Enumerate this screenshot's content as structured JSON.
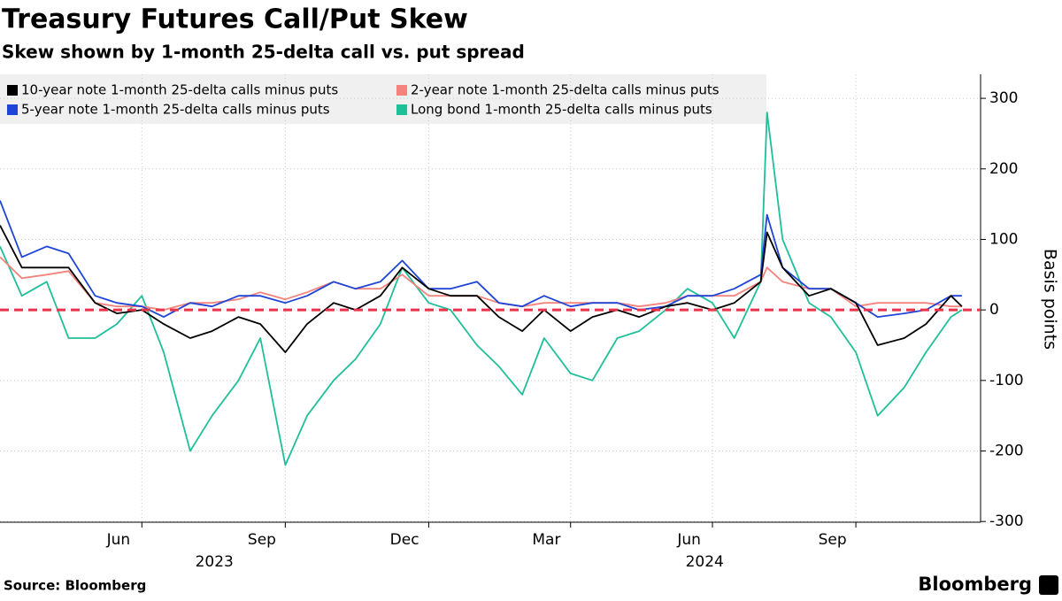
{
  "chart_data": {
    "type": "line",
    "title": "Treasury Futures Call/Put Skew",
    "subtitle": "Skew shown by 1-month 25-delta call vs. put spread",
    "y_label": "Basis points",
    "source": "Source: Bloomberg",
    "brand": "Bloomberg",
    "x": [
      "2023-04-01",
      "2023-04-15",
      "2023-05-01",
      "2023-05-15",
      "2023-06-01",
      "2023-06-15",
      "2023-07-01",
      "2023-07-15",
      "2023-08-01",
      "2023-08-15",
      "2023-09-01",
      "2023-09-15",
      "2023-10-01",
      "2023-10-15",
      "2023-11-01",
      "2023-11-15",
      "2023-12-01",
      "2023-12-15",
      "2024-01-01",
      "2024-01-15",
      "2024-02-01",
      "2024-02-15",
      "2024-03-01",
      "2024-03-15",
      "2024-04-01",
      "2024-04-15",
      "2024-05-01",
      "2024-05-15",
      "2024-06-01",
      "2024-06-15",
      "2024-07-01",
      "2024-07-15",
      "2024-08-01",
      "2024-08-05",
      "2024-08-15",
      "2024-09-01",
      "2024-09-15",
      "2024-10-01",
      "2024-10-15",
      "2024-11-01",
      "2024-11-15",
      "2024-12-01",
      "2024-12-08"
    ],
    "series": [
      {
        "name": "10-year note 1-month 25-delta calls minus puts",
        "color": "#000000",
        "values": [
          120,
          60,
          60,
          60,
          10,
          -5,
          0,
          -20,
          -40,
          -30,
          -10,
          -20,
          -60,
          -20,
          10,
          0,
          20,
          60,
          30,
          20,
          20,
          -10,
          -30,
          0,
          -30,
          -10,
          0,
          -10,
          5,
          10,
          0,
          10,
          40,
          110,
          60,
          20,
          30,
          10,
          -50,
          -40,
          -20,
          20,
          5
        ]
      },
      {
        "name": "2-year note 1-month 25-delta calls minus puts",
        "color": "#f4837d",
        "values": [
          75,
          45,
          50,
          55,
          10,
          5,
          5,
          0,
          10,
          10,
          15,
          25,
          15,
          25,
          40,
          30,
          30,
          50,
          20,
          20,
          20,
          10,
          5,
          10,
          10,
          10,
          10,
          5,
          10,
          20,
          20,
          20,
          40,
          60,
          40,
          30,
          30,
          5,
          10,
          10,
          10,
          5,
          5
        ]
      },
      {
        "name": "5-year note 1-month 25-delta calls minus puts",
        "color": "#1f45d6",
        "values": [
          155,
          75,
          90,
          80,
          20,
          10,
          5,
          -10,
          10,
          5,
          20,
          20,
          10,
          20,
          40,
          30,
          40,
          70,
          30,
          30,
          40,
          10,
          5,
          20,
          5,
          10,
          10,
          0,
          5,
          20,
          20,
          30,
          50,
          135,
          60,
          30,
          30,
          10,
          -10,
          -5,
          0,
          20,
          20
        ]
      },
      {
        "name": "Long bond 1-month 25-delta calls minus puts",
        "color": "#1fbf9a",
        "values": [
          90,
          20,
          40,
          -40,
          -40,
          -20,
          20,
          -60,
          -200,
          -150,
          -100,
          -40,
          -220,
          -150,
          -100,
          -70,
          -20,
          60,
          10,
          0,
          -50,
          -80,
          -120,
          -40,
          -90,
          -100,
          -40,
          -30,
          0,
          30,
          10,
          -40,
          40,
          280,
          100,
          10,
          -10,
          -60,
          -150,
          -110,
          -60,
          -10,
          0
        ]
      }
    ],
    "xlim": [
      "2023-04-01",
      "2024-12-20"
    ],
    "xticks": [
      {
        "value": "2023-06",
        "label": "Jun"
      },
      {
        "value": "2023-09",
        "label": "Sep"
      },
      {
        "value": "2023-12",
        "label": "Dec"
      },
      {
        "value": "2024-03",
        "label": "Mar"
      },
      {
        "value": "2024-06",
        "label": "Jun"
      },
      {
        "value": "2024-09",
        "label": "Sep"
      }
    ],
    "year_labels": [
      "2023",
      "2024"
    ],
    "ylim": [
      -301,
      334
    ],
    "yticks": [
      300,
      200,
      100,
      0,
      -100,
      -200,
      -300
    ],
    "zero_line": {
      "value": 0,
      "color": "#e8334b"
    },
    "grid": true,
    "legend": "top-left"
  }
}
